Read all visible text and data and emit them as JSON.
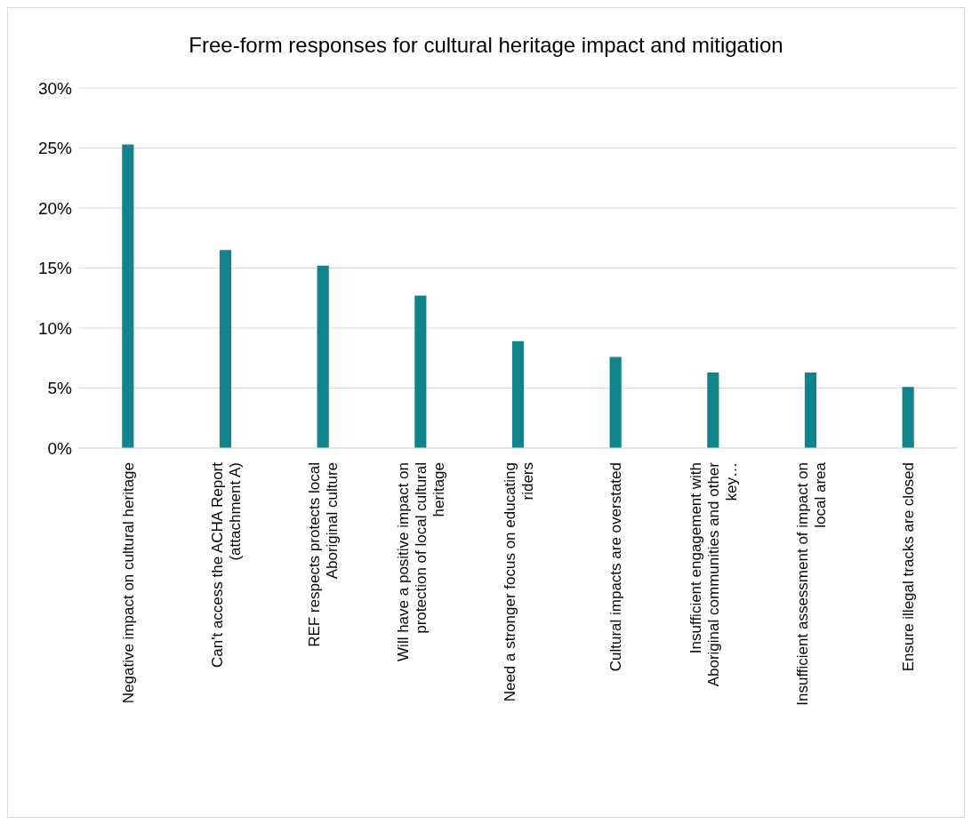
{
  "chart_data": {
    "type": "bar",
    "title": "Free-form responses for cultural heritage impact and mitigation",
    "categories": [
      "Negative impact on cultural heritage",
      "Can't access the ACHA Report (attachment A)",
      "REF respects protects local Aboriginal culture",
      "Will have a positive impact on protection of local cultural heritage",
      "Need a stronger focus on educating riders",
      "Cultural impacts are overstated",
      "Insufficient engagement with Aboriginal communities and other key…",
      "Insufficient assessment of impact on local area",
      "Ensure illegal tracks are closed"
    ],
    "values": [
      25.3,
      16.5,
      15.2,
      12.7,
      8.9,
      7.6,
      6.3,
      6.3,
      5.1
    ],
    "color": "#11838a",
    "ylim": [
      0,
      30
    ],
    "yticks": [
      {
        "value": 0,
        "label": "0%"
      },
      {
        "value": 5,
        "label": "5%"
      },
      {
        "value": 10,
        "label": "10%"
      },
      {
        "value": 15,
        "label": "15%"
      },
      {
        "value": 20,
        "label": "20%"
      },
      {
        "value": 25,
        "label": "25%"
      },
      {
        "value": 30,
        "label": "30%"
      }
    ],
    "grid": "y"
  }
}
